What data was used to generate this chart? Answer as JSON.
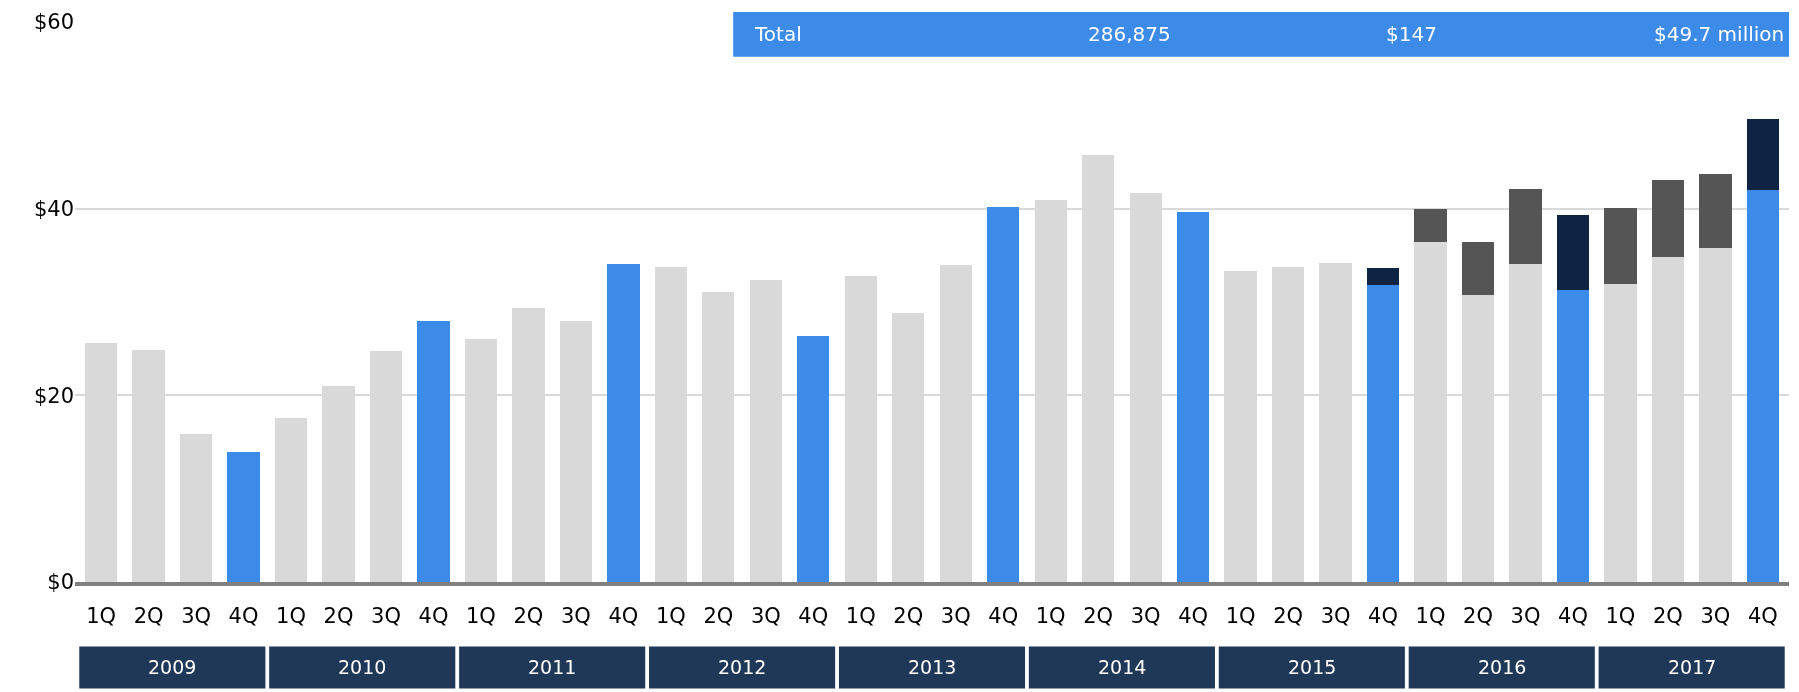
{
  "chart_data": {
    "type": "bar",
    "stacked": true,
    "categories": [
      "1Q",
      "2Q",
      "3Q",
      "4Q",
      "1Q",
      "2Q",
      "3Q",
      "4Q",
      "1Q",
      "2Q",
      "3Q",
      "4Q",
      "1Q",
      "2Q",
      "3Q",
      "4Q",
      "1Q",
      "2Q",
      "3Q",
      "4Q",
      "1Q",
      "2Q",
      "3Q",
      "4Q",
      "1Q",
      "2Q",
      "3Q",
      "4Q",
      "1Q",
      "2Q",
      "3Q",
      "4Q",
      "1Q",
      "2Q",
      "3Q",
      "4Q"
    ],
    "series": [
      {
        "colors": [
          "#d9d9d9",
          "#d9d9d9",
          "#d9d9d9",
          "#3d8be8",
          "#d9d9d9",
          "#d9d9d9",
          "#d9d9d9",
          "#3d8be8",
          "#d9d9d9",
          "#d9d9d9",
          "#d9d9d9",
          "#3d8be8",
          "#d9d9d9",
          "#d9d9d9",
          "#d9d9d9",
          "#3d8be8",
          "#d9d9d9",
          "#d9d9d9",
          "#d9d9d9",
          "#3d8be8",
          "#d9d9d9",
          "#d9d9d9",
          "#d9d9d9",
          "#3d8be8",
          "#d9d9d9",
          "#d9d9d9",
          "#d9d9d9",
          "#3d8be8",
          "#d9d9d9",
          "#d9d9d9",
          "#d9d9d9",
          "#3d8be8",
          "#d9d9d9",
          "#d9d9d9",
          "#d9d9d9",
          "#3d8be8"
        ],
        "values": [
          25.6,
          24.9,
          15.9,
          13.9,
          17.6,
          21.0,
          24.7,
          28.0,
          26.0,
          29.4,
          28.0,
          34.1,
          33.8,
          31.1,
          32.4,
          26.4,
          32.8,
          28.8,
          34.0,
          40.2,
          40.9,
          45.8,
          41.7,
          39.6,
          33.3,
          33.8,
          34.2,
          31.8,
          36.4,
          30.7,
          34.1,
          31.3,
          31.9,
          34.8,
          35.8,
          42.0
        ]
      },
      {
        "colors": [
          "#555555",
          "#555555",
          "#555555",
          "#0f2345",
          "#555555",
          "#555555",
          "#555555",
          "#0f2345",
          "#555555",
          "#555555",
          "#555555",
          "#0f2345",
          "#555555",
          "#555555",
          "#555555",
          "#0f2345",
          "#555555",
          "#555555",
          "#555555",
          "#0f2345",
          "#555555",
          "#555555",
          "#555555",
          "#0f2345",
          "#555555",
          "#555555",
          "#555555",
          "#0f2345",
          "#555555",
          "#555555",
          "#555555",
          "#0f2345",
          "#555555",
          "#555555",
          "#555555",
          "#0f2345"
        ],
        "values": [
          null,
          null,
          null,
          null,
          null,
          null,
          null,
          null,
          null,
          null,
          null,
          null,
          null,
          null,
          null,
          null,
          null,
          null,
          null,
          null,
          null,
          null,
          null,
          null,
          null,
          null,
          null,
          1.8,
          3.6,
          5.7,
          8.0,
          8.0,
          8.2,
          8.3,
          7.9,
          7.6
        ]
      }
    ],
    "ylim": [
      0,
      60
    ],
    "yticks": [
      {
        "value": 0,
        "label": "$0"
      },
      {
        "value": 20,
        "label": "$20"
      },
      {
        "value": 40,
        "label": "$40"
      },
      {
        "value": 60,
        "label": "$60"
      }
    ],
    "grid": "y",
    "annotations": [
      "Total",
      "286,875",
      "$147",
      "$49.7 million",
      "2009",
      "2010",
      "2011",
      "2012",
      "2013",
      "2014",
      "2015",
      "2016",
      "2017"
    ]
  }
}
